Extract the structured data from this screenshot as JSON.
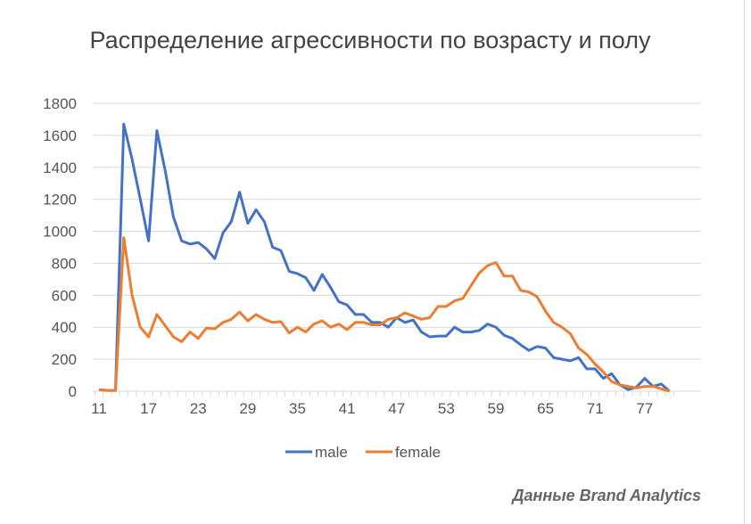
{
  "chart_data": {
    "type": "line",
    "title": "Распределение агрессивности по возрасту и полу",
    "xlabel": "",
    "ylabel": "",
    "x": [
      11,
      12,
      13,
      14,
      15,
      16,
      17,
      18,
      19,
      20,
      21,
      22,
      23,
      24,
      25,
      26,
      27,
      28,
      29,
      30,
      31,
      32,
      33,
      34,
      35,
      36,
      37,
      38,
      39,
      40,
      41,
      42,
      43,
      44,
      45,
      46,
      47,
      48,
      49,
      50,
      51,
      52,
      53,
      54,
      55,
      56,
      57,
      58,
      59,
      60,
      61,
      62,
      63,
      64,
      65,
      66,
      67,
      68,
      69,
      70,
      71,
      72,
      73,
      74,
      75,
      76,
      77,
      78,
      79,
      80
    ],
    "x_tick_labels": [
      "11",
      "17",
      "23",
      "29",
      "35",
      "41",
      "47",
      "53",
      "59",
      "65",
      "71",
      "77"
    ],
    "y_ticks": [
      0,
      200,
      400,
      600,
      800,
      1000,
      1200,
      1400,
      1600,
      1800
    ],
    "ylim": [
      0,
      1800
    ],
    "grid": true,
    "legend_placement": "bottom",
    "series": [
      {
        "name": "male",
        "color": "#4472C4",
        "values": [
          10,
          5,
          5,
          1670,
          1450,
          1200,
          940,
          1630,
          1380,
          1090,
          940,
          920,
          930,
          890,
          830,
          990,
          1060,
          1245,
          1050,
          1135,
          1060,
          900,
          880,
          750,
          735,
          710,
          630,
          730,
          650,
          560,
          540,
          480,
          480,
          430,
          430,
          400,
          460,
          430,
          445,
          370,
          340,
          345,
          345,
          400,
          370,
          370,
          380,
          420,
          400,
          350,
          330,
          290,
          255,
          280,
          270,
          210,
          200,
          190,
          210,
          140,
          140,
          80,
          110,
          40,
          10,
          25,
          80,
          30,
          45,
          0
        ]
      },
      {
        "name": "female",
        "color": "#ED7D31",
        "values": [
          10,
          5,
          5,
          960,
          600,
          400,
          340,
          480,
          410,
          340,
          310,
          370,
          330,
          395,
          390,
          430,
          450,
          495,
          440,
          480,
          450,
          430,
          435,
          365,
          400,
          370,
          420,
          440,
          400,
          420,
          385,
          430,
          430,
          415,
          415,
          450,
          460,
          490,
          470,
          450,
          460,
          530,
          530,
          565,
          580,
          660,
          740,
          785,
          805,
          720,
          720,
          630,
          620,
          590,
          500,
          430,
          400,
          360,
          270,
          230,
          170,
          120,
          60,
          40,
          30,
          20,
          30,
          30,
          15,
          0
        ]
      }
    ]
  },
  "source": "Данные Brand Analytics"
}
